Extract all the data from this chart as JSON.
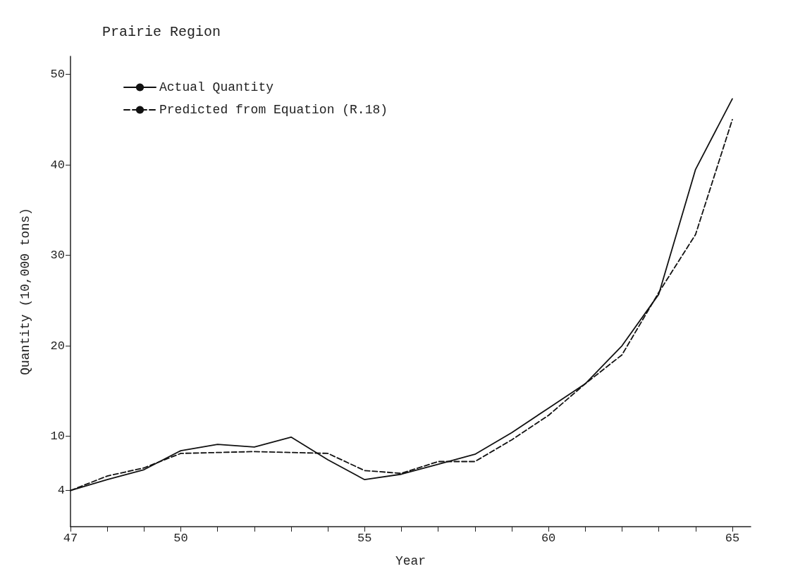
{
  "chart_data": {
    "type": "line",
    "title": "Prairie Region",
    "xlabel": "Year",
    "ylabel": "Quantity (10,000 tons)",
    "x": [
      47,
      48,
      49,
      50,
      51,
      52,
      53,
      54,
      55,
      56,
      57,
      58,
      59,
      60,
      61,
      62,
      63,
      64,
      65
    ],
    "series": [
      {
        "name": "Actual Quantity",
        "color": "#111111",
        "line_style": "solid",
        "values": [
          4,
          5.2,
          6.3,
          8.4,
          9.1,
          8.8,
          9.9,
          7.4,
          5.2,
          5.8,
          6.9,
          8.0,
          10.4,
          13.1,
          15.8,
          20.0,
          25.7,
          39.5,
          47.3
        ]
      },
      {
        "name": "Predicted from Equation (R.18)",
        "color": "#111111",
        "line_style": "dashed",
        "values": [
          4,
          5.6,
          6.5,
          8.1,
          8.2,
          8.3,
          8.2,
          8.1,
          6.2,
          5.9,
          7.2,
          7.2,
          9.6,
          12.3,
          15.8,
          19.0,
          25.9,
          32.3,
          45.0
        ]
      }
    ],
    "xlim": [
      47,
      65.5
    ],
    "xticks": [
      47,
      {
        "value": 48,
        "label": null
      },
      {
        "value": 49,
        "label": null
      },
      50,
      {
        "value": 51,
        "label": null
      },
      {
        "value": 52,
        "label": null
      },
      {
        "value": 53,
        "label": null
      },
      {
        "value": 54,
        "label": null
      },
      55,
      {
        "value": 56,
        "label": null
      },
      {
        "value": 57,
        "label": null
      },
      {
        "value": 58,
        "label": null
      },
      {
        "value": 59,
        "label": null
      },
      60,
      {
        "value": 61,
        "label": null
      },
      {
        "value": 62,
        "label": null
      },
      {
        "value": 63,
        "label": null
      },
      {
        "value": 64,
        "label": null
      },
      65
    ],
    "ylim": [
      0,
      52
    ],
    "yticks": [
      4,
      10,
      20,
      30,
      40,
      50
    ],
    "grid": false,
    "legend": "top left",
    "marker": "none"
  }
}
